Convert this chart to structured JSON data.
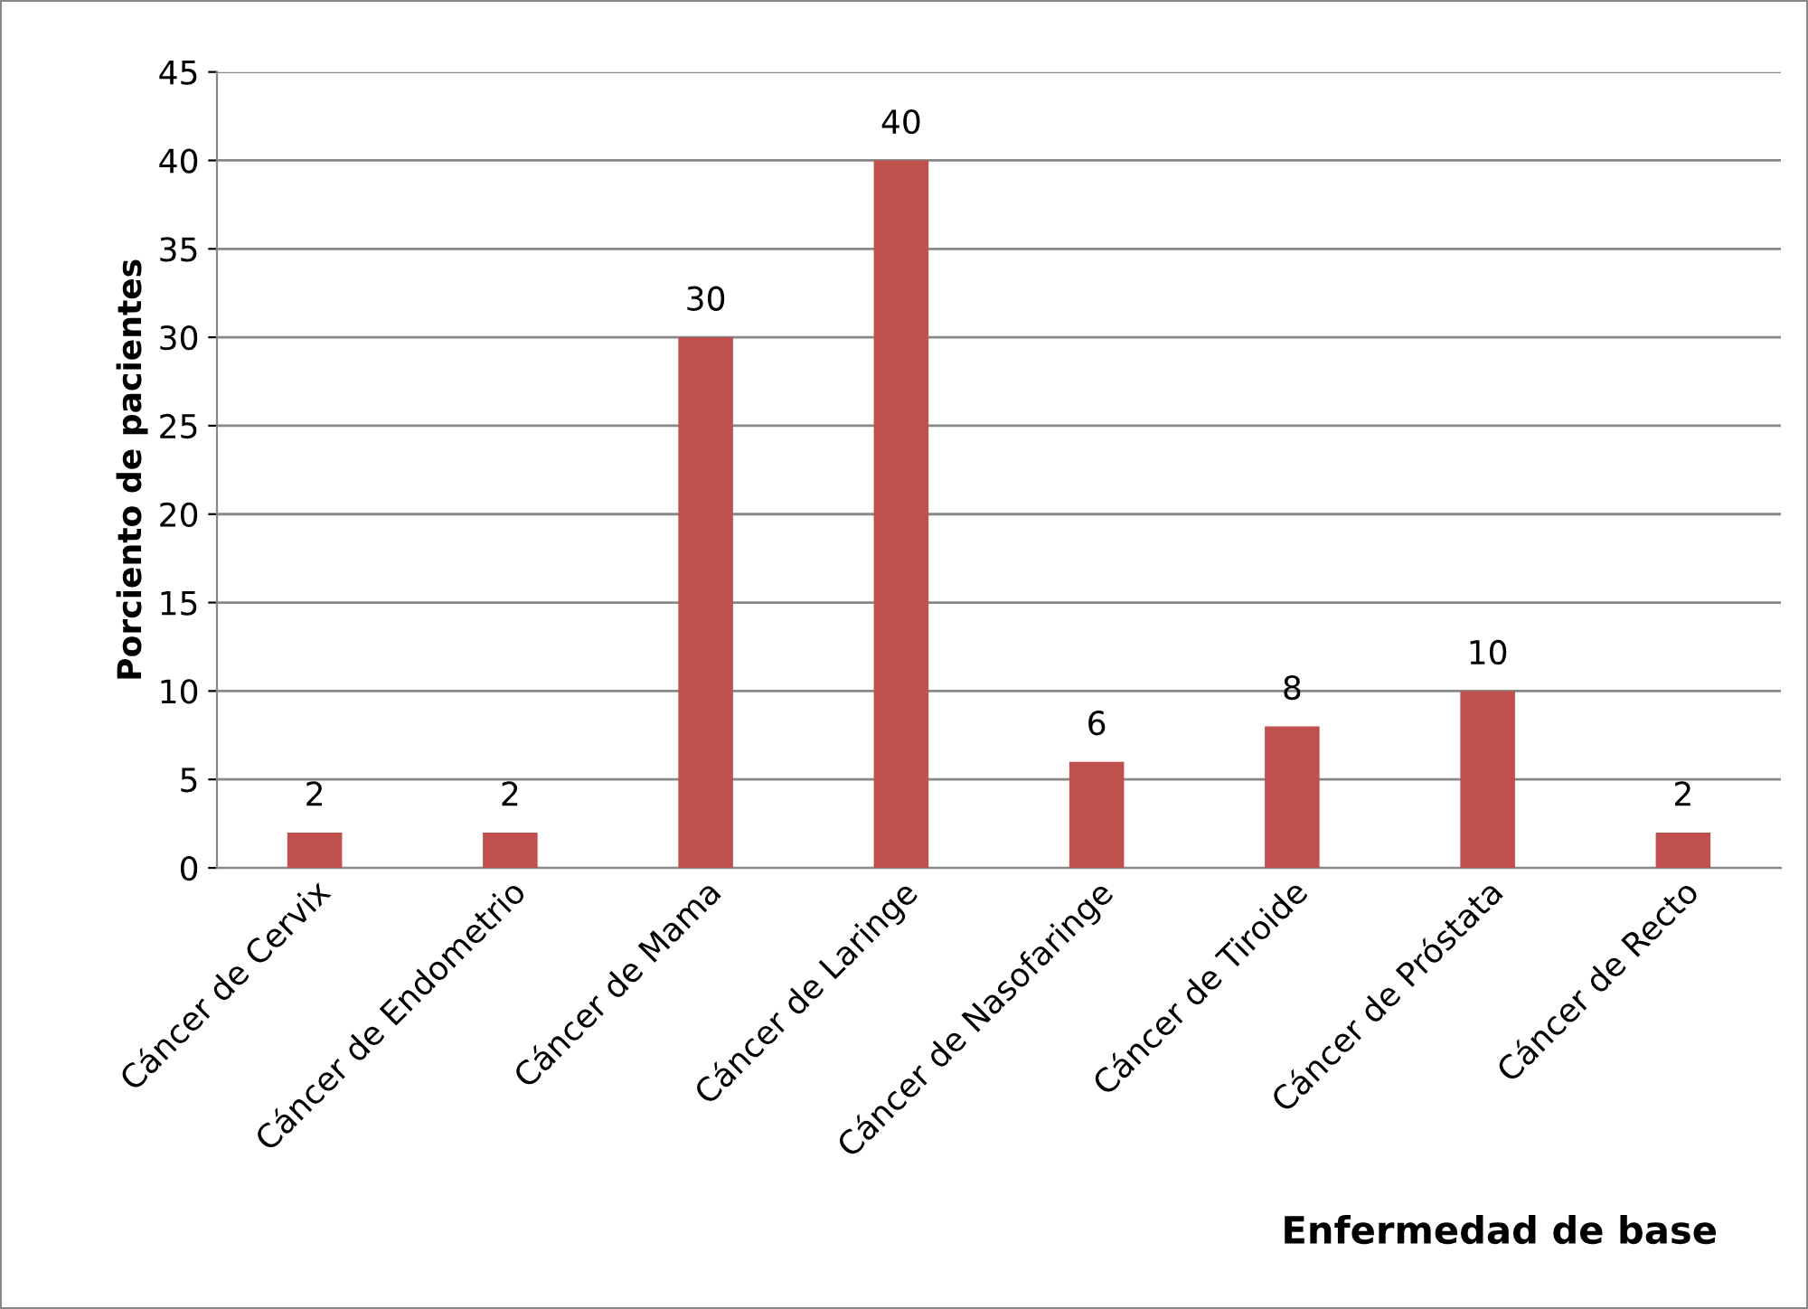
{
  "chart_data": {
    "type": "bar",
    "xlabel": "Enfermedad de base",
    "ylabel": "Porciento de pacientes",
    "categories": [
      "Cáncer de Cervix",
      "Cáncer de Endometrio",
      "Cáncer de Mama",
      "Cáncer de Laringe",
      "Cáncer de Nasofaringe",
      "Cáncer de Tiroide",
      "Cáncer de Próstata",
      "Cáncer de Recto"
    ],
    "values": [
      2,
      2,
      30,
      40,
      6,
      8,
      10,
      2
    ],
    "color": "#c0504d",
    "ylim": [
      0,
      45
    ],
    "yticks": [
      0,
      5,
      10,
      15,
      20,
      25,
      30,
      35,
      40,
      45
    ],
    "grid": "y",
    "data_labels": true,
    "legend": false
  }
}
